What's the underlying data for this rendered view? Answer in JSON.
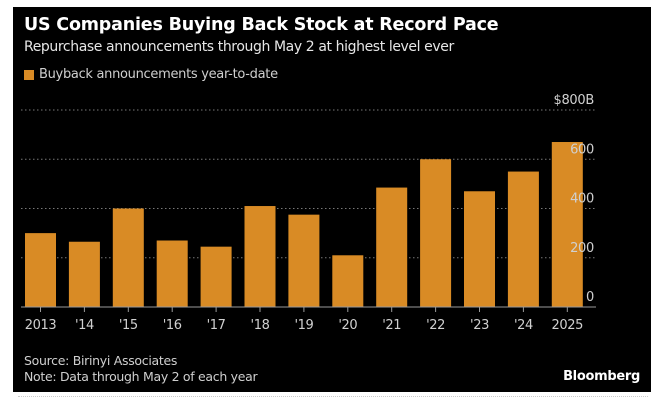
{
  "header": {
    "title": "US Companies Buying Back Stock at Record Pace",
    "subtitle": "Repurchase announcements through May 2 at highest level ever"
  },
  "footer": {
    "source": "Source: Birinyi Associates",
    "note": "Note: Data through May 2 of each year",
    "brand": "Bloomberg"
  },
  "colors": {
    "bar": "#d98b25",
    "background": "#000000",
    "grid": "#777777",
    "axis_text": "#d0d0d0"
  },
  "chart_data": {
    "type": "bar",
    "title": "US Companies Buying Back Stock at Record Pace",
    "subtitle": "Repurchase announcements through May 2 at highest level ever",
    "xlabel": "",
    "ylabel": "",
    "categories": [
      "2013",
      "'14",
      "'15",
      "'16",
      "'17",
      "'18",
      "'19",
      "'20",
      "'21",
      "'22",
      "'23",
      "'24",
      "2025"
    ],
    "series": [
      {
        "name": "Buyback announcements year-to-date",
        "values": [
          300,
          265,
          400,
          270,
          245,
          410,
          375,
          210,
          485,
          600,
          470,
          550,
          670
        ]
      }
    ],
    "ylim": [
      0,
      800
    ],
    "yticks": [
      0,
      200,
      400,
      600,
      800
    ],
    "ytick_labels": [
      "0",
      "200",
      "400",
      "600",
      "$800B"
    ],
    "y_axis_position": "right",
    "grid": true,
    "legend": {
      "position": "top-left",
      "entries": [
        "Buyback announcements year-to-date"
      ]
    }
  }
}
